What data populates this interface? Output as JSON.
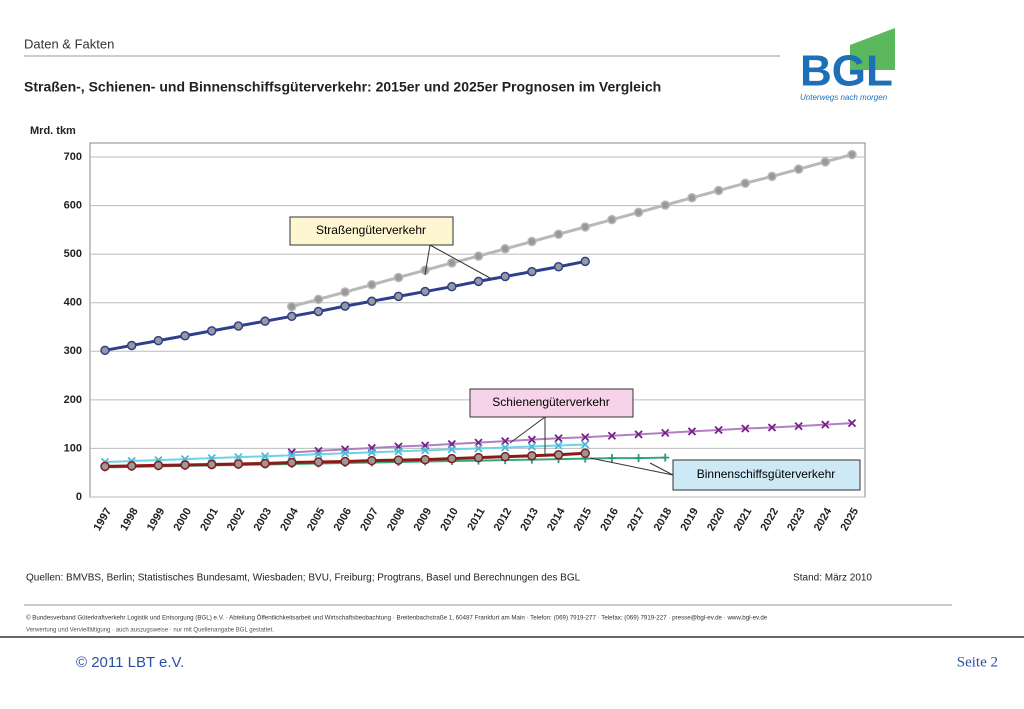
{
  "header": {
    "section": "Daten & Fakten",
    "logo": "BGL",
    "logo_tagline": "Unterwegs nach morgen"
  },
  "chart_data": {
    "type": "line",
    "title": "Straßen-, Schienen- und Binnenschiffsgüterverkehr: 2015er und 2025er Prognosen im Vergleich",
    "y_label": "Mrd. tkm",
    "categories": [
      "1997",
      "1998",
      "1999",
      "2000",
      "2001",
      "2002",
      "2003",
      "2004",
      "2005",
      "2006",
      "2007",
      "2008",
      "2009",
      "2010",
      "2011",
      "2012",
      "2013",
      "2014",
      "2015",
      "2016",
      "2017",
      "2018",
      "2019",
      "2020",
      "2021",
      "2022",
      "2023",
      "2024",
      "2025"
    ],
    "ylim": [
      0,
      700
    ],
    "yticks": [
      0,
      100,
      200,
      300,
      400,
      500,
      600,
      700
    ],
    "grid": true,
    "series": [
      {
        "color": "#b8b8b8",
        "marker": "circle",
        "values": [
          null,
          null,
          null,
          null,
          null,
          null,
          null,
          392,
          407,
          422,
          437,
          452,
          467,
          482,
          496,
          511,
          526,
          541,
          556,
          571,
          586,
          601,
          616,
          631,
          646,
          660,
          675,
          690,
          705
        ]
      },
      {
        "color": "#2e3f8f",
        "marker": "circle",
        "values": [
          302,
          312,
          322,
          332,
          342,
          352,
          362,
          372,
          382,
          393,
          403,
          413,
          423,
          433,
          444,
          454,
          464,
          474,
          485,
          null,
          null,
          null,
          null,
          null,
          null,
          null,
          null,
          null,
          null
        ]
      },
      {
        "color": "#b07fc0",
        "marker": "x",
        "values": [
          null,
          null,
          null,
          null,
          null,
          null,
          null,
          92,
          95,
          98,
          101,
          104,
          106,
          109,
          112,
          115,
          118,
          121,
          123,
          126,
          129,
          132,
          135,
          138,
          141,
          143,
          146,
          149,
          152
        ]
      },
      {
        "color": "#6fd3e6",
        "marker": "x",
        "values": [
          72,
          74,
          76,
          78,
          80,
          82,
          84,
          86,
          88,
          90,
          92,
          94,
          96,
          98,
          100,
          102,
          104,
          106,
          108,
          null,
          null,
          null,
          null,
          null,
          null,
          null,
          null,
          null,
          null
        ]
      },
      {
        "color": "#3aa874",
        "marker": "plus",
        "values": [
          61,
          62,
          63,
          64,
          65,
          66,
          67,
          68,
          69,
          70,
          71,
          72,
          73,
          74,
          75,
          76,
          77,
          78,
          79,
          80,
          80,
          81,
          null,
          null,
          null,
          null,
          null,
          null,
          null
        ]
      },
      {
        "color": "#8b1a1a",
        "marker": "circle",
        "values": [
          63,
          64,
          65,
          66,
          67,
          68,
          69,
          71,
          72,
          73,
          75,
          76,
          77,
          79,
          81,
          83,
          85,
          87,
          90,
          null,
          null,
          null,
          null,
          null,
          null,
          null,
          null,
          null,
          null
        ]
      }
    ],
    "annotations": [
      "Straßengüterverkehr",
      "Schienengüterverkehr",
      "Binnenschiffsgüterverkehr"
    ],
    "source": "Quellen: BMVBS, Berlin; Statistisches Bundesamt, Wiesbaden; BVU, Freiburg; Progtrans, Basel und Berechnungen des BGL",
    "status": "Stand: März 2010"
  },
  "footer": {
    "org": "© Bundesverband Güterkraftverkehr Logistik und Entsorgung (BGL) e.V. · Abteilung Öffentlichkeitsarbeit und Wirtschaftsbeobachtung · Breitenbachstraße 1, 60487 Frankfurt am Main · Telefon: (069) 7919-277 · Telefax: (069) 7919-227 · presse@bgl-ev.de · www.bgl-ev.de",
    "note": "Verwertung und Vervielfältigung · auch auszugsweise · nur mit Quellenangabe BGL gestattet.",
    "copyright": "© 2011  LBT e.V.",
    "page": "Seite 2"
  }
}
